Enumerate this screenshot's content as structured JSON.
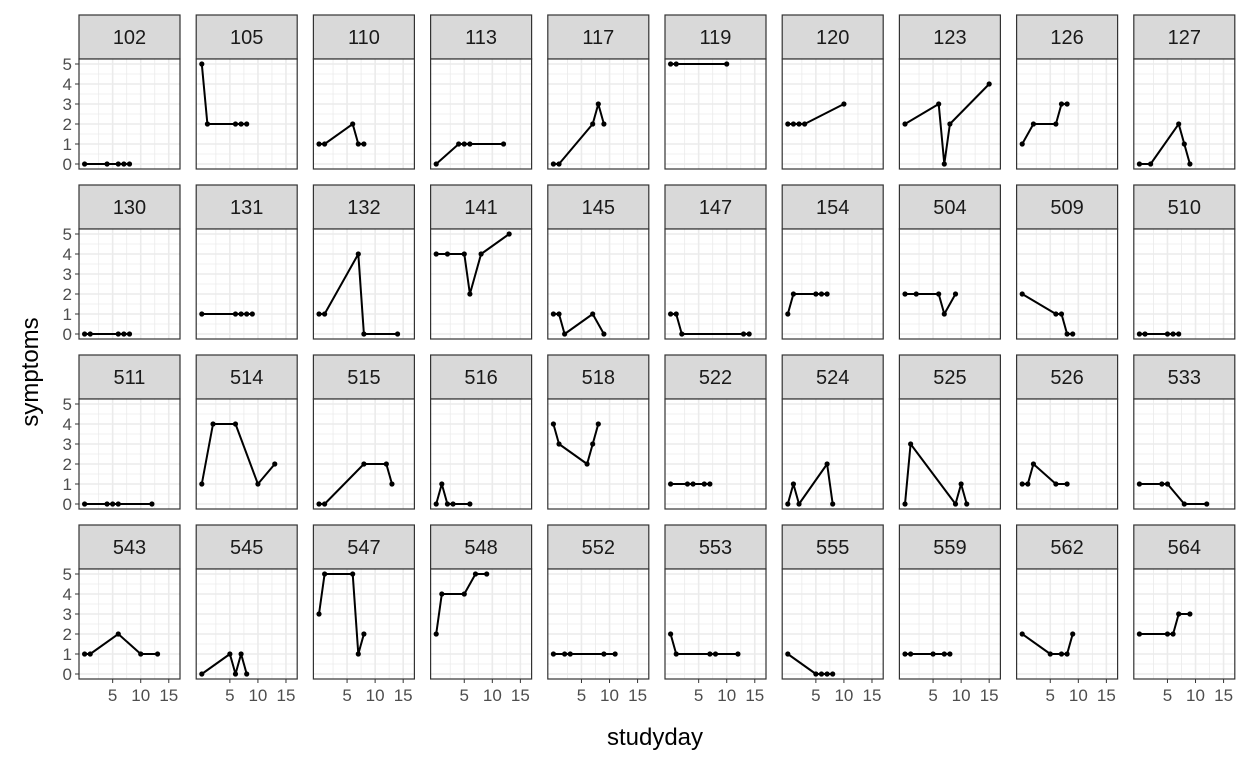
{
  "chart_data": {
    "type": "line",
    "facet_layout": "4 rows x 10 columns",
    "xlabel": "studyday",
    "ylabel": "symptoms",
    "xlim": [
      -1,
      17
    ],
    "ylim": [
      -0.25,
      5.25
    ],
    "x_ticks": [
      5,
      10,
      15
    ],
    "y_ticks": [
      0,
      1,
      2,
      3,
      4,
      5
    ],
    "grid": true,
    "theme": "ggplot2 theme_bw",
    "colors": {
      "line": "#000000",
      "grid": "#ebebeb",
      "strip": "#d9d9d9",
      "border": "#333333"
    },
    "panels": [
      {
        "id": "102",
        "x": [
          0,
          4,
          6,
          7,
          8
        ],
        "y": [
          0,
          0,
          0,
          0,
          0
        ]
      },
      {
        "id": "105",
        "x": [
          0,
          1,
          6,
          7,
          8
        ],
        "y": [
          5,
          2,
          2,
          2,
          2
        ]
      },
      {
        "id": "110",
        "x": [
          0,
          1,
          6,
          7,
          8
        ],
        "y": [
          1,
          1,
          2,
          1,
          1
        ]
      },
      {
        "id": "113",
        "x": [
          0,
          4,
          5,
          6,
          12
        ],
        "y": [
          0,
          1,
          1,
          1,
          1
        ]
      },
      {
        "id": "117",
        "x": [
          0,
          1,
          7,
          8,
          9
        ],
        "y": [
          0,
          0,
          2,
          3,
          2
        ]
      },
      {
        "id": "119",
        "x": [
          0,
          1,
          10
        ],
        "y": [
          5,
          5,
          5
        ]
      },
      {
        "id": "120",
        "x": [
          0,
          1,
          2,
          3,
          10
        ],
        "y": [
          2,
          2,
          2,
          2,
          3
        ]
      },
      {
        "id": "123",
        "x": [
          0,
          6,
          7,
          8,
          15
        ],
        "y": [
          2,
          3,
          0,
          2,
          4
        ]
      },
      {
        "id": "126",
        "x": [
          0,
          2,
          6,
          7,
          8
        ],
        "y": [
          1,
          2,
          2,
          3,
          3
        ]
      },
      {
        "id": "127",
        "x": [
          0,
          2,
          7,
          8,
          9
        ],
        "y": [
          0,
          0,
          2,
          1,
          0
        ]
      },
      {
        "id": "130",
        "x": [
          0,
          1,
          6,
          7,
          8
        ],
        "y": [
          0,
          0,
          0,
          0,
          0
        ]
      },
      {
        "id": "131",
        "x": [
          0,
          6,
          7,
          8,
          9
        ],
        "y": [
          1,
          1,
          1,
          1,
          1
        ]
      },
      {
        "id": "132",
        "x": [
          0,
          1,
          7,
          8,
          14
        ],
        "y": [
          1,
          1,
          4,
          0,
          0
        ]
      },
      {
        "id": "141",
        "x": [
          0,
          2,
          5,
          6,
          8,
          13
        ],
        "y": [
          4,
          4,
          4,
          2,
          4,
          5
        ]
      },
      {
        "id": "145",
        "x": [
          0,
          1,
          2,
          7,
          9
        ],
        "y": [
          1,
          1,
          0,
          1,
          0
        ]
      },
      {
        "id": "147",
        "x": [
          0,
          1,
          2,
          13,
          14
        ],
        "y": [
          1,
          1,
          0,
          0,
          0
        ]
      },
      {
        "id": "154",
        "x": [
          0,
          1,
          5,
          6,
          7
        ],
        "y": [
          1,
          2,
          2,
          2,
          2
        ]
      },
      {
        "id": "504",
        "x": [
          0,
          2,
          6,
          7,
          9
        ],
        "y": [
          2,
          2,
          2,
          1,
          2
        ]
      },
      {
        "id": "509",
        "x": [
          0,
          6,
          7,
          8,
          9
        ],
        "y": [
          2,
          1,
          1,
          0,
          0
        ]
      },
      {
        "id": "510",
        "x": [
          0,
          1,
          5,
          6,
          7
        ],
        "y": [
          0,
          0,
          0,
          0,
          0
        ]
      },
      {
        "id": "511",
        "x": [
          0,
          4,
          5,
          6,
          12
        ],
        "y": [
          0,
          0,
          0,
          0,
          0
        ]
      },
      {
        "id": "514",
        "x": [
          0,
          2,
          6,
          10,
          13
        ],
        "y": [
          1,
          4,
          4,
          1,
          2
        ]
      },
      {
        "id": "515",
        "x": [
          0,
          1,
          8,
          12,
          13
        ],
        "y": [
          0,
          0,
          2,
          2,
          1
        ]
      },
      {
        "id": "516",
        "x": [
          0,
          1,
          2,
          3,
          6
        ],
        "y": [
          0,
          1,
          0,
          0,
          0
        ]
      },
      {
        "id": "518",
        "x": [
          0,
          1,
          6,
          7,
          8
        ],
        "y": [
          4,
          3,
          2,
          3,
          4
        ]
      },
      {
        "id": "522",
        "x": [
          0,
          3,
          4,
          6,
          7
        ],
        "y": [
          1,
          1,
          1,
          1,
          1
        ]
      },
      {
        "id": "524",
        "x": [
          0,
          1,
          2,
          7,
          8
        ],
        "y": [
          0,
          1,
          0,
          2,
          0
        ]
      },
      {
        "id": "525",
        "x": [
          0,
          1,
          9,
          10,
          11
        ],
        "y": [
          0,
          3,
          0,
          1,
          0
        ]
      },
      {
        "id": "526",
        "x": [
          0,
          1,
          2,
          6,
          8
        ],
        "y": [
          1,
          1,
          2,
          1,
          1
        ]
      },
      {
        "id": "533",
        "x": [
          0,
          4,
          5,
          8,
          12
        ],
        "y": [
          1,
          1,
          1,
          0,
          0
        ]
      },
      {
        "id": "543",
        "x": [
          0,
          1,
          6,
          10,
          13
        ],
        "y": [
          1,
          1,
          2,
          1,
          1
        ]
      },
      {
        "id": "545",
        "x": [
          0,
          5,
          6,
          7,
          8
        ],
        "y": [
          0,
          1,
          0,
          1,
          0
        ]
      },
      {
        "id": "547",
        "x": [
          0,
          1,
          6,
          7,
          8
        ],
        "y": [
          3,
          5,
          5,
          1,
          2
        ]
      },
      {
        "id": "548",
        "x": [
          0,
          1,
          5,
          7,
          9
        ],
        "y": [
          2,
          4,
          4,
          5,
          5
        ]
      },
      {
        "id": "552",
        "x": [
          0,
          2,
          3,
          9,
          11
        ],
        "y": [
          1,
          1,
          1,
          1,
          1
        ]
      },
      {
        "id": "553",
        "x": [
          0,
          1,
          7,
          8,
          12
        ],
        "y": [
          2,
          1,
          1,
          1,
          1
        ]
      },
      {
        "id": "555",
        "x": [
          0,
          5,
          6,
          7,
          8
        ],
        "y": [
          1,
          0,
          0,
          0,
          0
        ]
      },
      {
        "id": "559",
        "x": [
          0,
          1,
          5,
          7,
          8
        ],
        "y": [
          1,
          1,
          1,
          1,
          1
        ]
      },
      {
        "id": "562",
        "x": [
          0,
          5,
          7,
          8,
          9
        ],
        "y": [
          2,
          1,
          1,
          1,
          2
        ]
      },
      {
        "id": "564",
        "x": [
          0,
          5,
          6,
          7,
          9
        ],
        "y": [
          2,
          2,
          2,
          3,
          3
        ]
      }
    ]
  }
}
